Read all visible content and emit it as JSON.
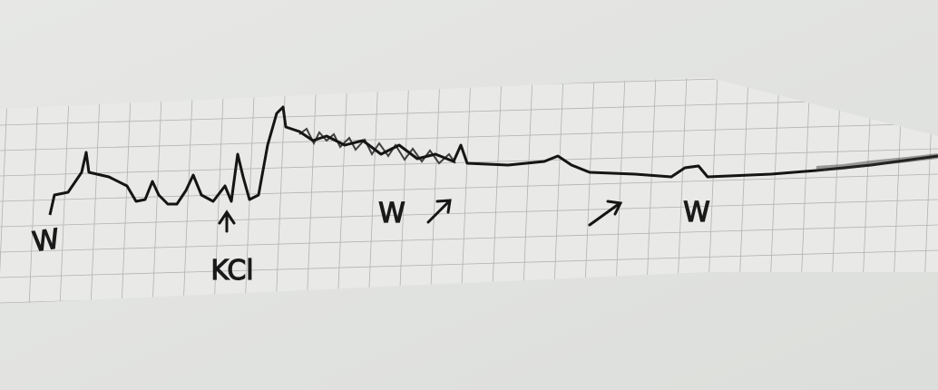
{
  "annotations": [
    "W",
    "KCl",
    "W",
    "W"
  ]
}
